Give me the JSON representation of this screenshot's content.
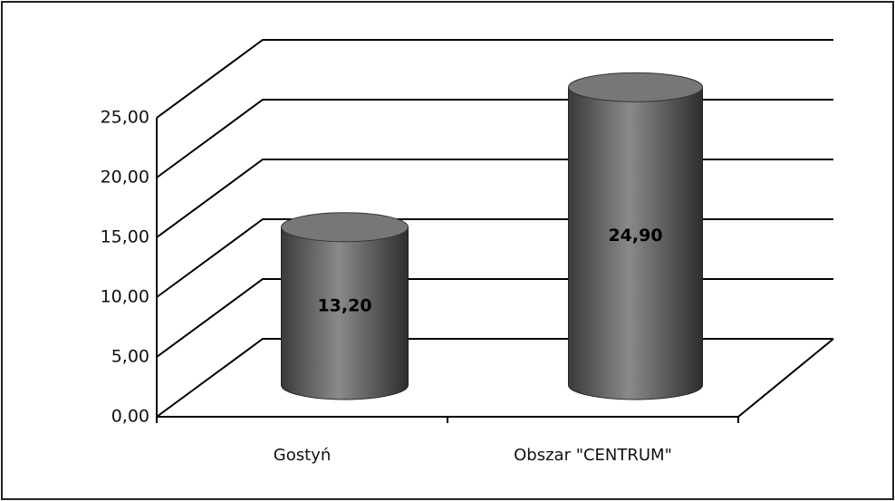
{
  "chart_data": {
    "type": "bar3d",
    "categories": [
      "Gostyń",
      "Obszar \"CENTRUM\""
    ],
    "values": [
      13.2,
      24.9
    ],
    "value_labels": [
      "13,20",
      "24,90"
    ],
    "color": "#6a6a6a",
    "ylim": [
      0,
      25
    ],
    "yticks": [
      {
        "value": 0,
        "label": "0,00"
      },
      {
        "value": 5,
        "label": "5,00"
      },
      {
        "value": 10,
        "label": "10,00"
      },
      {
        "value": 15,
        "label": "15,00"
      },
      {
        "value": 20,
        "label": "20,00"
      },
      {
        "value": 25,
        "label": "25,00"
      }
    ],
    "grid": true
  }
}
